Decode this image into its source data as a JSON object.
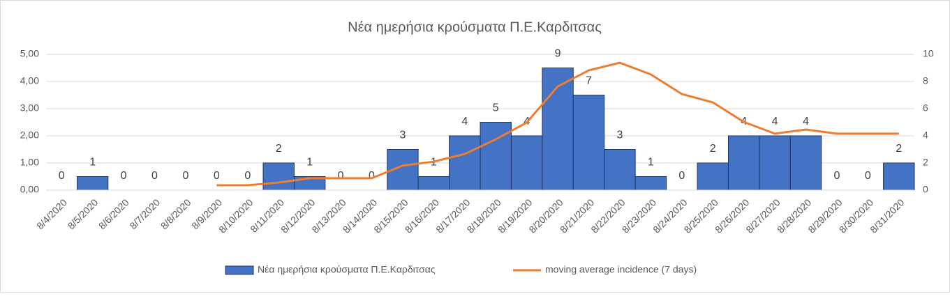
{
  "chart_data": {
    "type": "bar",
    "title": "Νέα ημερήσια κρούσματα Π.Ε.Καρδιτσας",
    "categories": [
      "8/4/2020",
      "8/5/2020",
      "8/6/2020",
      "8/7/2020",
      "8/8/2020",
      "8/9/2020",
      "8/10/2020",
      "8/11/2020",
      "8/12/2020",
      "8/13/2020",
      "8/14/2020",
      "8/15/2020",
      "8/16/2020",
      "8/17/2020",
      "8/18/2020",
      "8/19/2020",
      "8/20/2020",
      "8/21/2020",
      "8/22/2020",
      "8/23/2020",
      "8/24/2020",
      "8/25/2020",
      "8/26/2020",
      "8/27/2020",
      "8/28/2020",
      "8/29/2020",
      "8/30/2020",
      "8/31/2020"
    ],
    "series": [
      {
        "name": "Νέα ημερήσια κρούσματα Π.Ε.Καρδιτσας",
        "type": "bar",
        "axis": "y2",
        "color": "#4472c4",
        "values": [
          0,
          1,
          0,
          0,
          0,
          0,
          0,
          2,
          1,
          0,
          0,
          3,
          1,
          4,
          5,
          4,
          9,
          7,
          3,
          1,
          0,
          2,
          4,
          4,
          4,
          0,
          0,
          2
        ]
      },
      {
        "name": "moving average incidence (7 days)",
        "type": "line",
        "axis": "y",
        "color": "#ed7d31",
        "values": [
          null,
          null,
          null,
          null,
          null,
          0.18,
          0.18,
          0.28,
          0.44,
          0.44,
          0.44,
          0.9,
          1.05,
          1.33,
          1.87,
          2.49,
          3.82,
          4.41,
          4.69,
          4.26,
          3.54,
          3.23,
          2.51,
          2.08,
          2.23,
          2.08,
          2.08,
          2.08
        ]
      }
    ],
    "ylim": [
      0,
      5
    ],
    "yticks": [
      {
        "value": 0,
        "label": "0,00"
      },
      {
        "value": 1,
        "label": "1,00"
      },
      {
        "value": 2,
        "label": "2,00"
      },
      {
        "value": 3,
        "label": "3,00"
      },
      {
        "value": 4,
        "label": "4,00"
      },
      {
        "value": 5,
        "label": "5,00"
      }
    ],
    "y2lim": [
      0,
      10
    ],
    "y2ticks": [
      0,
      2,
      4,
      6,
      8,
      10
    ],
    "legend": "bottom"
  }
}
